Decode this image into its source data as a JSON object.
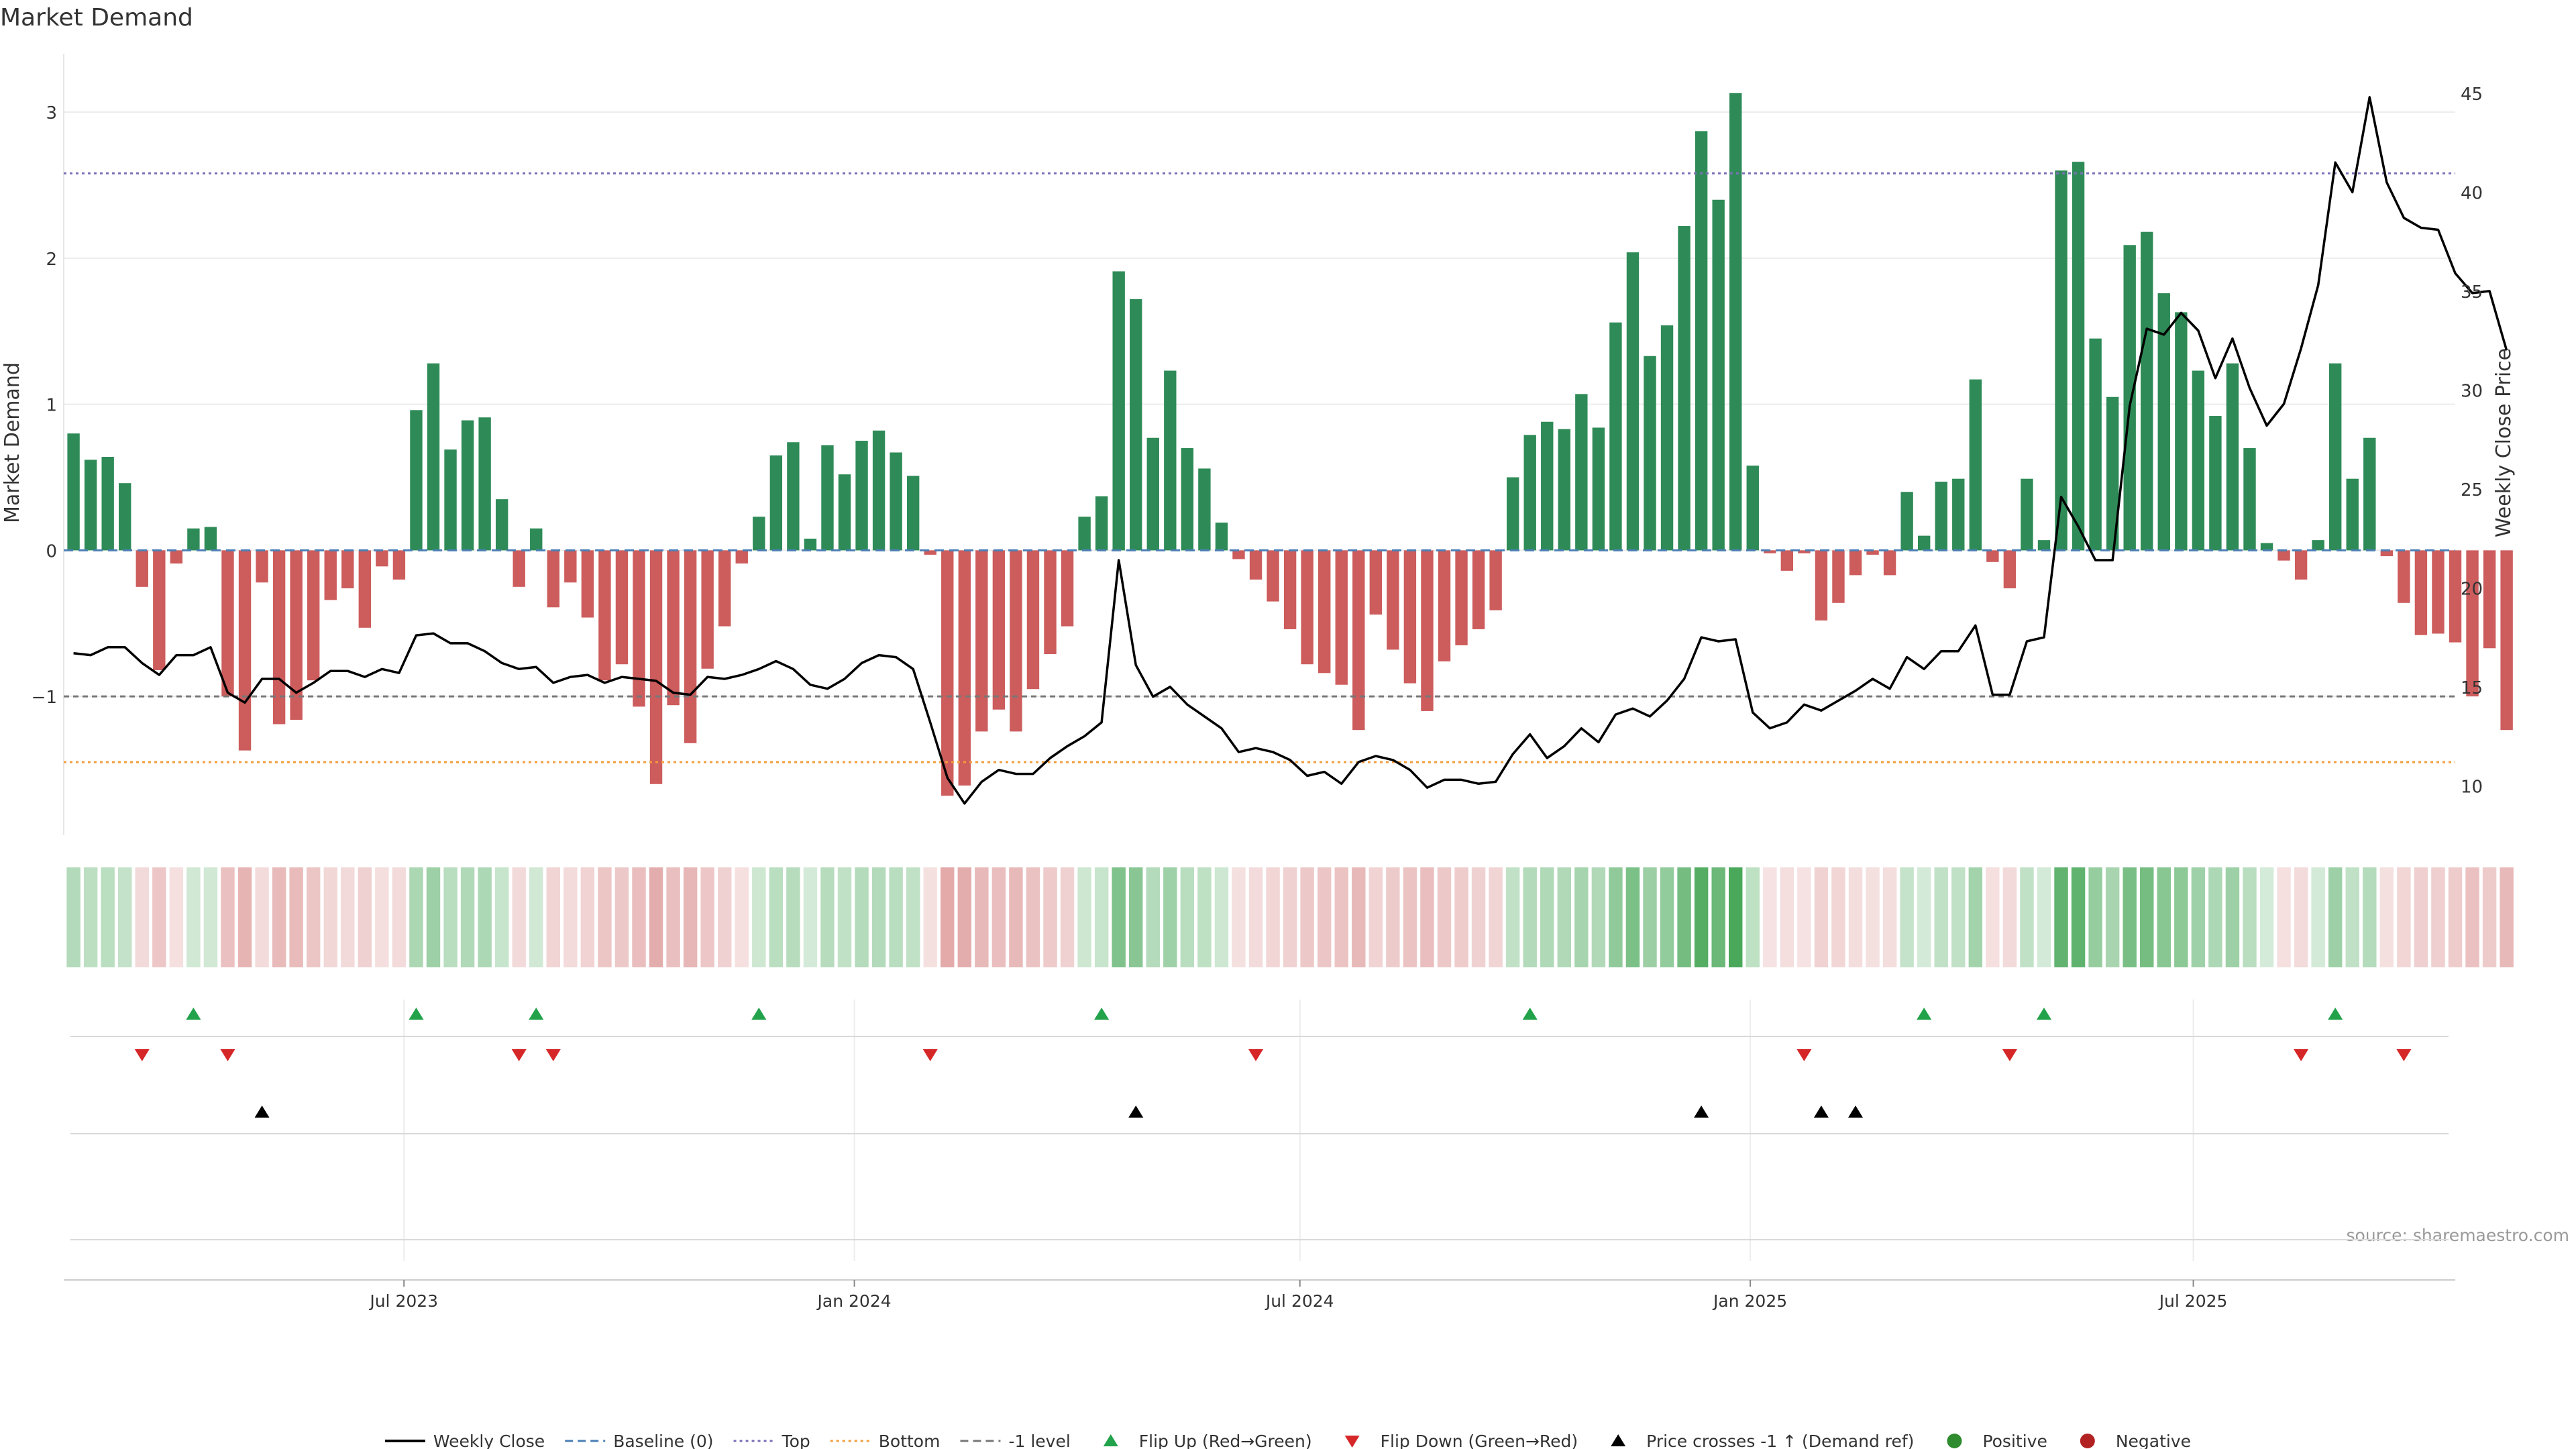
{
  "chart_data": {
    "type": "bar",
    "title": "Market Demand",
    "ylabel": "Market Demand",
    "y2label": "Weekly Close Price",
    "ylim": [
      -1.95,
      3.4
    ],
    "y2lim": [
      7.5,
      47
    ],
    "yticks": [
      -1,
      0,
      1,
      2,
      3
    ],
    "y2ticks": [
      10,
      15,
      20,
      25,
      30,
      35,
      40,
      45
    ],
    "x_range": [
      "2023-02-12",
      "2025-10-16"
    ],
    "xticks": [
      {
        "date": "2023-07-01",
        "label": "Jul 2023"
      },
      {
        "date": "2024-01-01",
        "label": "Jan 2024"
      },
      {
        "date": "2024-07-01",
        "label": "Jul 2024"
      },
      {
        "date": "2025-01-01",
        "label": "Jan 2025"
      },
      {
        "date": "2025-07-01",
        "label": "Jul 2025"
      }
    ],
    "start_week": "2023-02-16",
    "week_days": 7,
    "reference_lines": {
      "baseline": 0,
      "top": 2.58,
      "bottom": -1.45,
      "minus_one": -1
    },
    "series": [
      {
        "name": "Market Demand",
        "type": "bar",
        "values": [
          0.8,
          0.62,
          0.64,
          0.46,
          -0.25,
          -0.82,
          -0.09,
          0.15,
          0.16,
          -1,
          -1.37,
          -0.22,
          -1.19,
          -1.16,
          -0.89,
          -0.34,
          -0.26,
          -0.53,
          -0.11,
          -0.2,
          0.96,
          1.28,
          0.69,
          0.89,
          0.91,
          0.35,
          -0.25,
          0.15,
          -0.39,
          -0.22,
          -0.46,
          -0.89,
          -0.78,
          -1.07,
          -1.6,
          -1.06,
          -1.32,
          -0.81,
          -0.52,
          -0.09,
          0.23,
          0.65,
          0.74,
          0.08,
          0.72,
          0.52,
          0.75,
          0.82,
          0.67,
          0.51,
          -0.03,
          -1.68,
          -1.61,
          -1.24,
          -1.09,
          -1.24,
          -0.95,
          -0.71,
          -0.52,
          0.23,
          0.37,
          1.91,
          1.72,
          0.77,
          1.23,
          0.7,
          0.56,
          0.19,
          -0.06,
          -0.2,
          -0.35,
          -0.54,
          -0.78,
          -0.84,
          -0.92,
          -1.23,
          -0.44,
          -0.68,
          -0.91,
          -1.1,
          -0.76,
          -0.65,
          -0.54,
          -0.41,
          0.5,
          0.79,
          0.88,
          0.83,
          1.07,
          0.84,
          1.56,
          2.04,
          1.33,
          1.54,
          2.22,
          2.87,
          2.4,
          3.13,
          0.58,
          -0.02,
          -0.14,
          -0.02,
          -0.48,
          -0.36,
          -0.17,
          -0.03,
          -0.17,
          0.4,
          0.1,
          0.47,
          0.49,
          1.17,
          -0.08,
          -0.26,
          0.49,
          0.07,
          2.6,
          2.66,
          1.45,
          1.05,
          2.09,
          2.18,
          1.76,
          1.63,
          1.23,
          0.92,
          1.28,
          0.7,
          0.05,
          -0.07,
          -0.2,
          0.07,
          1.28,
          0.49,
          0.77,
          -0.04,
          -0.36,
          -0.58,
          -0.57,
          -0.63,
          -1,
          -0.67,
          -1.23
        ]
      },
      {
        "name": "Weekly Close",
        "type": "line",
        "axis": "right",
        "values": [
          16.7,
          16.6,
          17.0,
          17.0,
          16.2,
          15.6,
          16.6,
          16.6,
          17.0,
          14.7,
          14.2,
          15.4,
          15.4,
          14.7,
          15.2,
          15.8,
          15.8,
          15.5,
          15.9,
          15.7,
          17.6,
          17.7,
          17.2,
          17.2,
          16.8,
          16.2,
          15.9,
          16.0,
          15.2,
          15.5,
          15.6,
          15.2,
          15.5,
          15.4,
          15.3,
          14.7,
          14.6,
          15.5,
          15.4,
          15.6,
          15.9,
          16.3,
          15.9,
          15.1,
          14.9,
          15.4,
          16.2,
          16.6,
          16.5,
          15.9,
          13.2,
          10.4,
          9.1,
          10.2,
          10.8,
          10.6,
          10.6,
          11.4,
          12.0,
          12.5,
          13.2,
          21.4,
          16.1,
          14.5,
          15.0,
          14.1,
          13.5,
          12.9,
          11.7,
          11.9,
          11.7,
          11.3,
          10.5,
          10.7,
          10.1,
          11.2,
          11.5,
          11.3,
          10.8,
          9.9,
          10.3,
          10.3,
          10.1,
          10.2,
          11.6,
          12.6,
          11.4,
          12.0,
          12.9,
          12.2,
          13.6,
          13.9,
          13.5,
          14.3,
          15.4,
          17.5,
          17.3,
          17.4,
          13.7,
          12.9,
          13.2,
          14.1,
          13.8,
          14.3,
          14.8,
          15.4,
          14.9,
          16.5,
          15.9,
          16.8,
          16.8,
          18.1,
          14.6,
          14.6,
          17.3,
          17.5,
          24.6,
          23.1,
          21.4,
          21.4,
          29.2,
          33.1,
          32.8,
          33.9,
          33.0,
          30.6,
          32.6,
          30.1,
          28.2,
          29.3,
          32.1,
          35.3,
          41.5,
          40.0,
          44.8,
          40.5,
          38.7,
          38.2,
          38.1,
          35.9,
          34.9,
          35.0,
          32.0
        ]
      }
    ],
    "color_strip": {
      "positive_color": "#4aa85a",
      "negative_color": "#d47a7a"
    },
    "markers": {
      "flip_up_weeks": [
        7,
        20,
        27,
        40,
        60,
        85,
        108,
        115,
        132
      ],
      "flip_down_weeks": [
        4,
        9,
        26,
        28,
        50,
        69,
        101,
        113,
        130,
        136
      ],
      "price_cross_weeks": [
        11,
        62,
        95,
        102,
        104
      ]
    },
    "legend": [
      {
        "label": "Weekly Close",
        "kind": "line",
        "color": "#000000"
      },
      {
        "label": "Baseline (0)",
        "kind": "dash",
        "color": "#4a7fb5"
      },
      {
        "label": "Top",
        "kind": "dot",
        "color": "#7b6fb8"
      },
      {
        "label": "Bottom",
        "kind": "dot",
        "color": "#f39c3a"
      },
      {
        "label": "-1 level",
        "kind": "dash",
        "color": "#777777"
      },
      {
        "label": "Flip Up (Red→Green)",
        "kind": "tri-up",
        "color": "#22a24a"
      },
      {
        "label": "Flip Down (Green→Red)",
        "kind": "tri-down",
        "color": "#d62728"
      },
      {
        "label": "Price crosses -1 ↑ (Demand ref)",
        "kind": "tri-up",
        "color": "#000000"
      },
      {
        "label": "Positive",
        "kind": "circle",
        "color": "#2e8b2e"
      },
      {
        "label": "Negative",
        "kind": "circle",
        "color": "#b22222"
      }
    ],
    "legend_position": "bottom-center",
    "source": "source: sharemaestro.com",
    "colors": {
      "positive_bar": "#2e8b57",
      "negative_bar": "#cd5c5c",
      "top_line": "#7b6fb8",
      "bottom_line": "#f39c3a",
      "baseline": "#4a7fb5",
      "minus_one": "#777777"
    }
  }
}
